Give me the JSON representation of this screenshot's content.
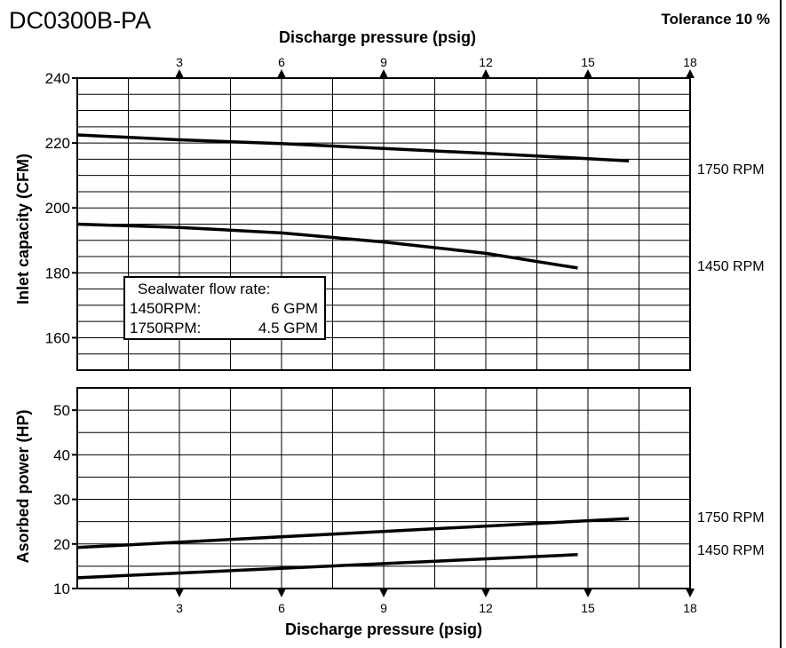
{
  "header": {
    "model": "DC0300B-PA",
    "tolerance": "Tolerance 10 %"
  },
  "chart_data": [
    {
      "type": "line",
      "xlabel": "Discharge pressure (psig)",
      "ylabel": "Inlet capacity (CFM)",
      "xlim": [
        0,
        18
      ],
      "ylim": [
        150,
        240
      ],
      "x_ticks": [
        "3",
        "6",
        "9",
        "12",
        "15",
        "18"
      ],
      "y_ticks": [
        "160",
        "180",
        "200",
        "220",
        "240"
      ],
      "grid": true,
      "series": [
        {
          "name": "1750 RPM",
          "x": [
            0,
            3,
            6,
            9,
            12,
            15,
            16.2
          ],
          "values": [
            222.5,
            221,
            219.8,
            218.3,
            216.8,
            215.2,
            214.5
          ]
        },
        {
          "name": "1450 RPM",
          "x": [
            0,
            3,
            6,
            9,
            12,
            14.7
          ],
          "values": [
            195,
            194,
            192.3,
            189.5,
            186,
            181.5
          ]
        }
      ],
      "annotation": {
        "title": "Sealwater flow rate:",
        "lines": [
          {
            "label": "1450RPM:",
            "value": "6 GPM"
          },
          {
            "label": "1750RPM:",
            "value": "4.5 GPM"
          }
        ]
      }
    },
    {
      "type": "line",
      "xlabel": "Discharge pressure (psig)",
      "ylabel": "Asorbed power (HP)",
      "xlim": [
        0,
        18
      ],
      "ylim": [
        10,
        55
      ],
      "x_ticks": [
        "3",
        "6",
        "9",
        "12",
        "15",
        "18"
      ],
      "y_ticks": [
        "10",
        "20",
        "30",
        "40",
        "50"
      ],
      "grid": true,
      "series": [
        {
          "name": "1750 RPM",
          "x": [
            0,
            16.2
          ],
          "values": [
            19.2,
            25.7
          ]
        },
        {
          "name": "1450 RPM",
          "x": [
            0,
            14.7
          ],
          "values": [
            12.4,
            17.6
          ]
        }
      ]
    }
  ]
}
